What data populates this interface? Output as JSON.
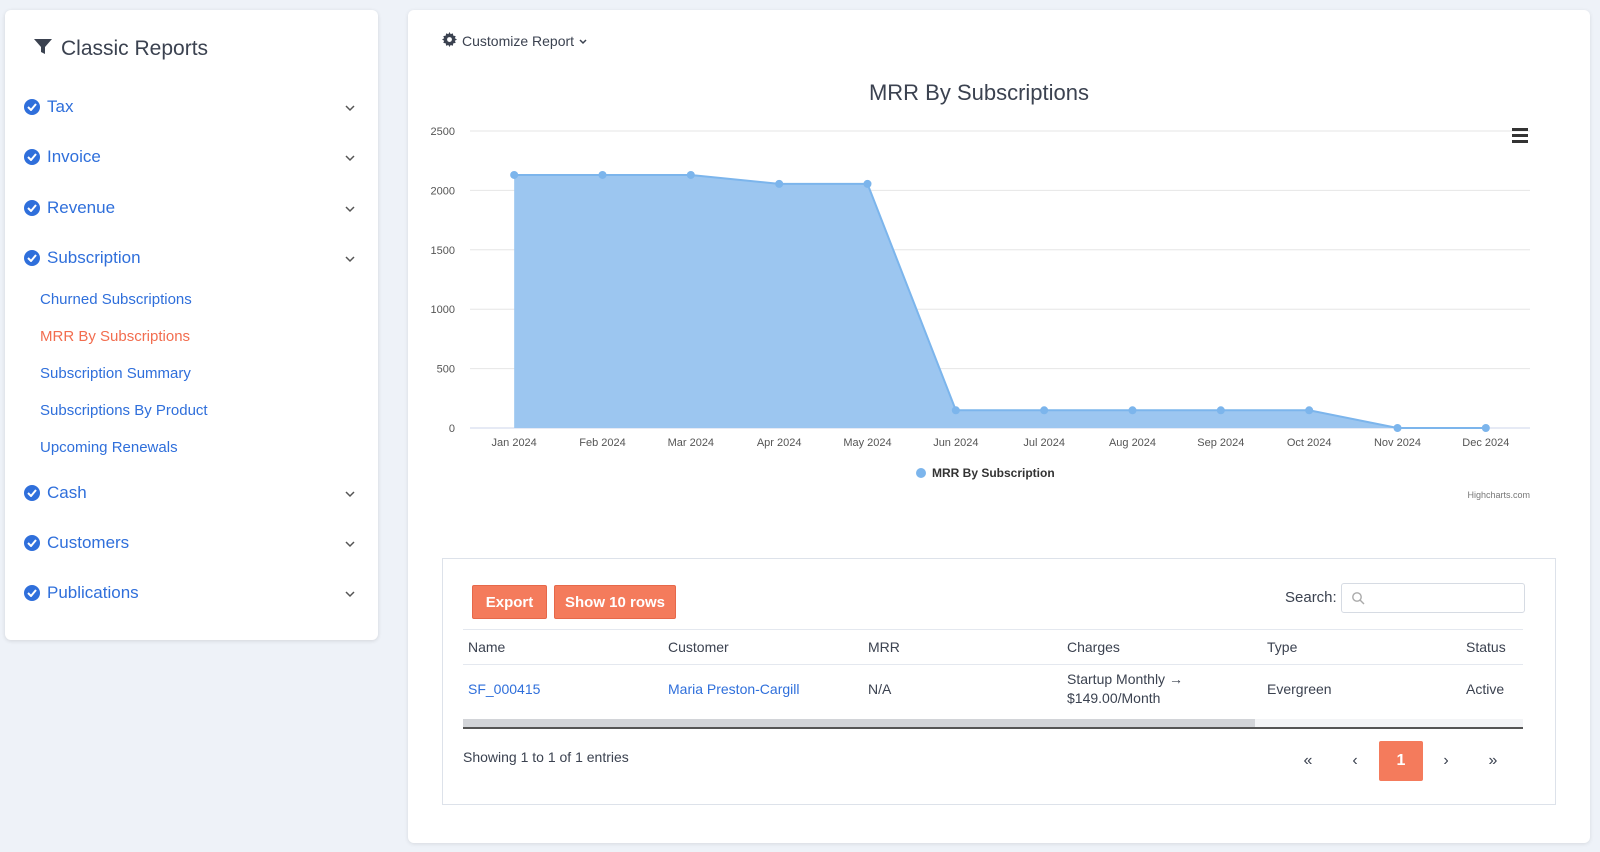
{
  "sidebar": {
    "title": "Classic Reports",
    "sections": [
      {
        "label": "Tax"
      },
      {
        "label": "Invoice"
      },
      {
        "label": "Revenue"
      },
      {
        "label": "Subscription"
      },
      {
        "label": "Cash"
      },
      {
        "label": "Customers"
      },
      {
        "label": "Publications"
      }
    ],
    "subscription_items": [
      {
        "label": "Churned Subscriptions",
        "active": false
      },
      {
        "label": "MRR By Subscriptions",
        "active": true
      },
      {
        "label": "Subscription Summary",
        "active": false
      },
      {
        "label": "Subscriptions By Product",
        "active": false
      },
      {
        "label": "Upcoming Renewals",
        "active": false
      }
    ]
  },
  "main": {
    "customize_label": "Customize Report",
    "credits": "Highcharts.com"
  },
  "chart_data": {
    "type": "area",
    "title": "MRR By Subscriptions",
    "categories": [
      "Jan 2024",
      "Feb 2024",
      "Mar 2024",
      "Apr 2024",
      "May 2024",
      "Jun 2024",
      "Jul 2024",
      "Aug 2024",
      "Sep 2024",
      "Oct 2024",
      "Nov 2024",
      "Dec 2024"
    ],
    "series": [
      {
        "name": "MRR By Subscription",
        "values": [
          2130,
          2130,
          2130,
          2055,
          2055,
          149,
          149,
          149,
          149,
          149,
          0,
          0
        ]
      }
    ],
    "ylim": [
      0,
      2500
    ],
    "yticks": [
      "0",
      "500",
      "1000",
      "1500",
      "2000",
      "2500"
    ],
    "grid": true,
    "legend": "bottom-center",
    "color": "#7cb5ec",
    "fill": "#9cc6f0"
  },
  "table": {
    "export_label": "Export",
    "show_rows_label": "Show 10 rows",
    "search_label": "Search:",
    "search_value": "",
    "columns": [
      "Name",
      "Customer",
      "MRR",
      "Charges",
      "Type",
      "Status"
    ],
    "rows": [
      {
        "name": "SF_000415",
        "customer": "Maria Preston-Cargill",
        "mrr": "N/A",
        "charges_line1": "Startup Monthly →",
        "charges_line2": "$149.00/Month",
        "type": "Evergreen",
        "status": "Active"
      }
    ],
    "info": "Showing 1 to 1 of 1 entries",
    "pagination": {
      "first": "«",
      "prev": "‹",
      "current": "1",
      "next": "›",
      "last": "»"
    }
  },
  "colors": {
    "accent": "#f47b5c",
    "link": "#2f6fdb",
    "active_nav": "#f26d4f"
  }
}
